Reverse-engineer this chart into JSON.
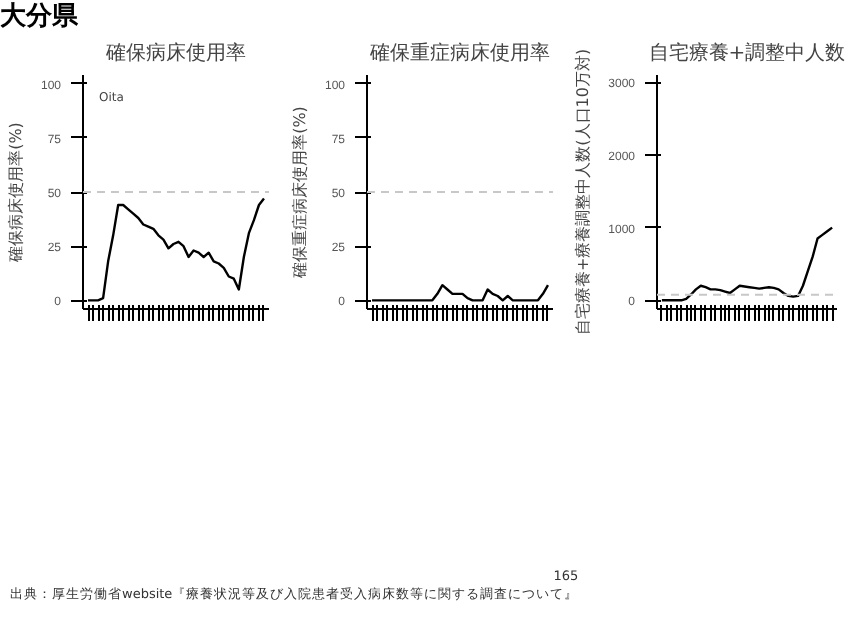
{
  "chart_data": [
    {
      "type": "line",
      "title": "確保病床使用率",
      "ylabel": "確保病床使用率(%)",
      "annotations": [
        "大分県",
        "Oita"
      ],
      "categories": [
        null,
        null,
        null,
        null,
        null,
        null,
        null,
        null,
        null,
        null,
        null,
        null,
        null,
        null,
        null,
        null,
        null,
        null,
        null,
        null,
        null,
        null,
        null,
        null,
        null,
        null,
        null,
        null,
        null,
        null,
        null,
        null,
        null,
        null,
        null,
        null
      ],
      "series": [
        {
          "color": "#000000",
          "values": [
            0,
            0,
            0,
            1,
            18,
            30,
            44,
            44,
            42,
            40,
            38,
            35,
            34,
            33,
            30,
            28,
            24,
            26,
            27,
            25,
            20,
            23,
            22,
            20,
            22,
            18,
            17,
            15,
            11,
            10,
            5,
            20,
            31,
            37,
            44,
            47
          ]
        }
      ],
      "ylim": [
        -4,
        104
      ],
      "yticks": [
        0,
        25,
        50,
        75,
        100
      ],
      "ref_lines": [
        {
          "axis": "y",
          "value": 50,
          "color": "#c8c8c8",
          "line_style": "dashed"
        }
      ],
      "grid": false,
      "tick_labels": "y"
    },
    {
      "type": "line",
      "title": "確保重症病床使用率",
      "ylabel": "確保重症病床使用率(%)",
      "categories": [
        null,
        null,
        null,
        null,
        null,
        null,
        null,
        null,
        null,
        null,
        null,
        null,
        null,
        null,
        null,
        null,
        null,
        null,
        null,
        null,
        null,
        null,
        null,
        null,
        null,
        null,
        null,
        null,
        null,
        null,
        null,
        null,
        null,
        null,
        null,
        null
      ],
      "series": [
        {
          "color": "#000000",
          "values": [
            0,
            0,
            0,
            0,
            0,
            0,
            0,
            0,
            0,
            0,
            0,
            0,
            0,
            3,
            7,
            5,
            3,
            3,
            3,
            1,
            0,
            0,
            0,
            5,
            3,
            2,
            0,
            2,
            0,
            0,
            0,
            0,
            0,
            0,
            3,
            7
          ]
        }
      ],
      "ylim": [
        -4,
        104
      ],
      "yticks": [
        0,
        25,
        50,
        75,
        100
      ],
      "ref_lines": [
        {
          "axis": "y",
          "value": 50,
          "color": "#c8c8c8",
          "line_style": "dashed"
        }
      ],
      "grid": false,
      "tick_labels": "y"
    },
    {
      "type": "line",
      "title": "自宅療養+調整中人数",
      "ylabel": "自宅療養+療養調整中人数(人口10万対)",
      "annotations": [
        "165",
        "出典：厚生労働省website『療養状況等及び入院患者受入病床数等に関する調査について』"
      ],
      "categories": [
        null,
        null,
        null,
        null,
        null,
        null,
        null,
        null,
        null,
        null,
        null,
        null,
        null,
        null,
        null,
        null,
        null,
        null,
        null,
        null,
        null,
        null,
        null,
        null,
        null,
        null,
        null,
        null,
        null,
        null,
        null,
        null,
        null,
        null,
        null,
        null
      ],
      "series": [
        {
          "color": "#000000",
          "values": [
            0,
            0,
            0,
            0,
            0,
            20,
            80,
            150,
            200,
            180,
            150,
            150,
            140,
            120,
            100,
            150,
            200,
            190,
            180,
            170,
            160,
            170,
            180,
            170,
            150,
            100,
            60,
            50,
            60,
            200,
            400,
            600,
            850,
            900,
            950,
            1000
          ]
        }
      ],
      "ylim": [
        -120,
        3100
      ],
      "yticks": [
        0,
        1000,
        2000,
        3000
      ],
      "ref_lines": [
        {
          "axis": "y",
          "value": 75,
          "color": "#c8c8c8",
          "line_style": "dashed"
        }
      ],
      "grid": false,
      "tick_labels": "y"
    }
  ]
}
